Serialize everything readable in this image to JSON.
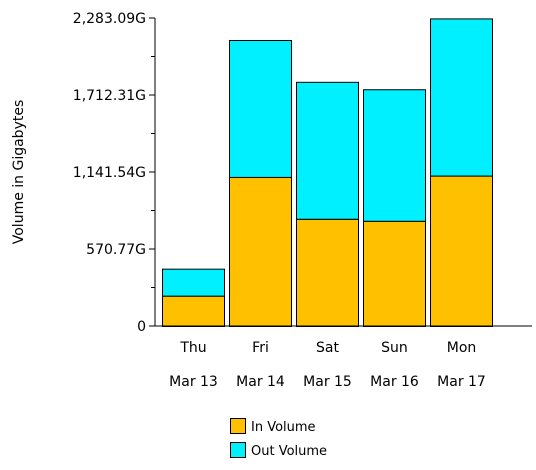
{
  "chart_data": {
    "type": "bar",
    "stacked": true,
    "title": "",
    "xlabel": "",
    "ylabel": "Volume in Gigabytes",
    "ylim": [
      0,
      2283.09
    ],
    "y_ticks": [
      0,
      570.77,
      1141.54,
      1712.31,
      2283.09
    ],
    "y_tick_labels": [
      "0",
      "570.77G",
      "1,141.54G",
      "1,712.31G",
      "2,283.09G"
    ],
    "categories": [
      {
        "day": "Thu",
        "date": "Mar 13"
      },
      {
        "day": "Fri",
        "date": "Mar 14"
      },
      {
        "day": "Sat",
        "date": "Mar 15"
      },
      {
        "day": "Sun",
        "date": "Mar 16"
      },
      {
        "day": "Mon",
        "date": "Mar 17"
      }
    ],
    "series": [
      {
        "name": "In Volume",
        "color": "#ffc000",
        "values": [
          225,
          1105,
          795,
          780,
          1115
        ]
      },
      {
        "name": "Out Volume",
        "color": "#00f0ff",
        "values": [
          200,
          1015,
          1015,
          975,
          1165
        ]
      }
    ],
    "legend": "bottom-center",
    "grid": false
  }
}
